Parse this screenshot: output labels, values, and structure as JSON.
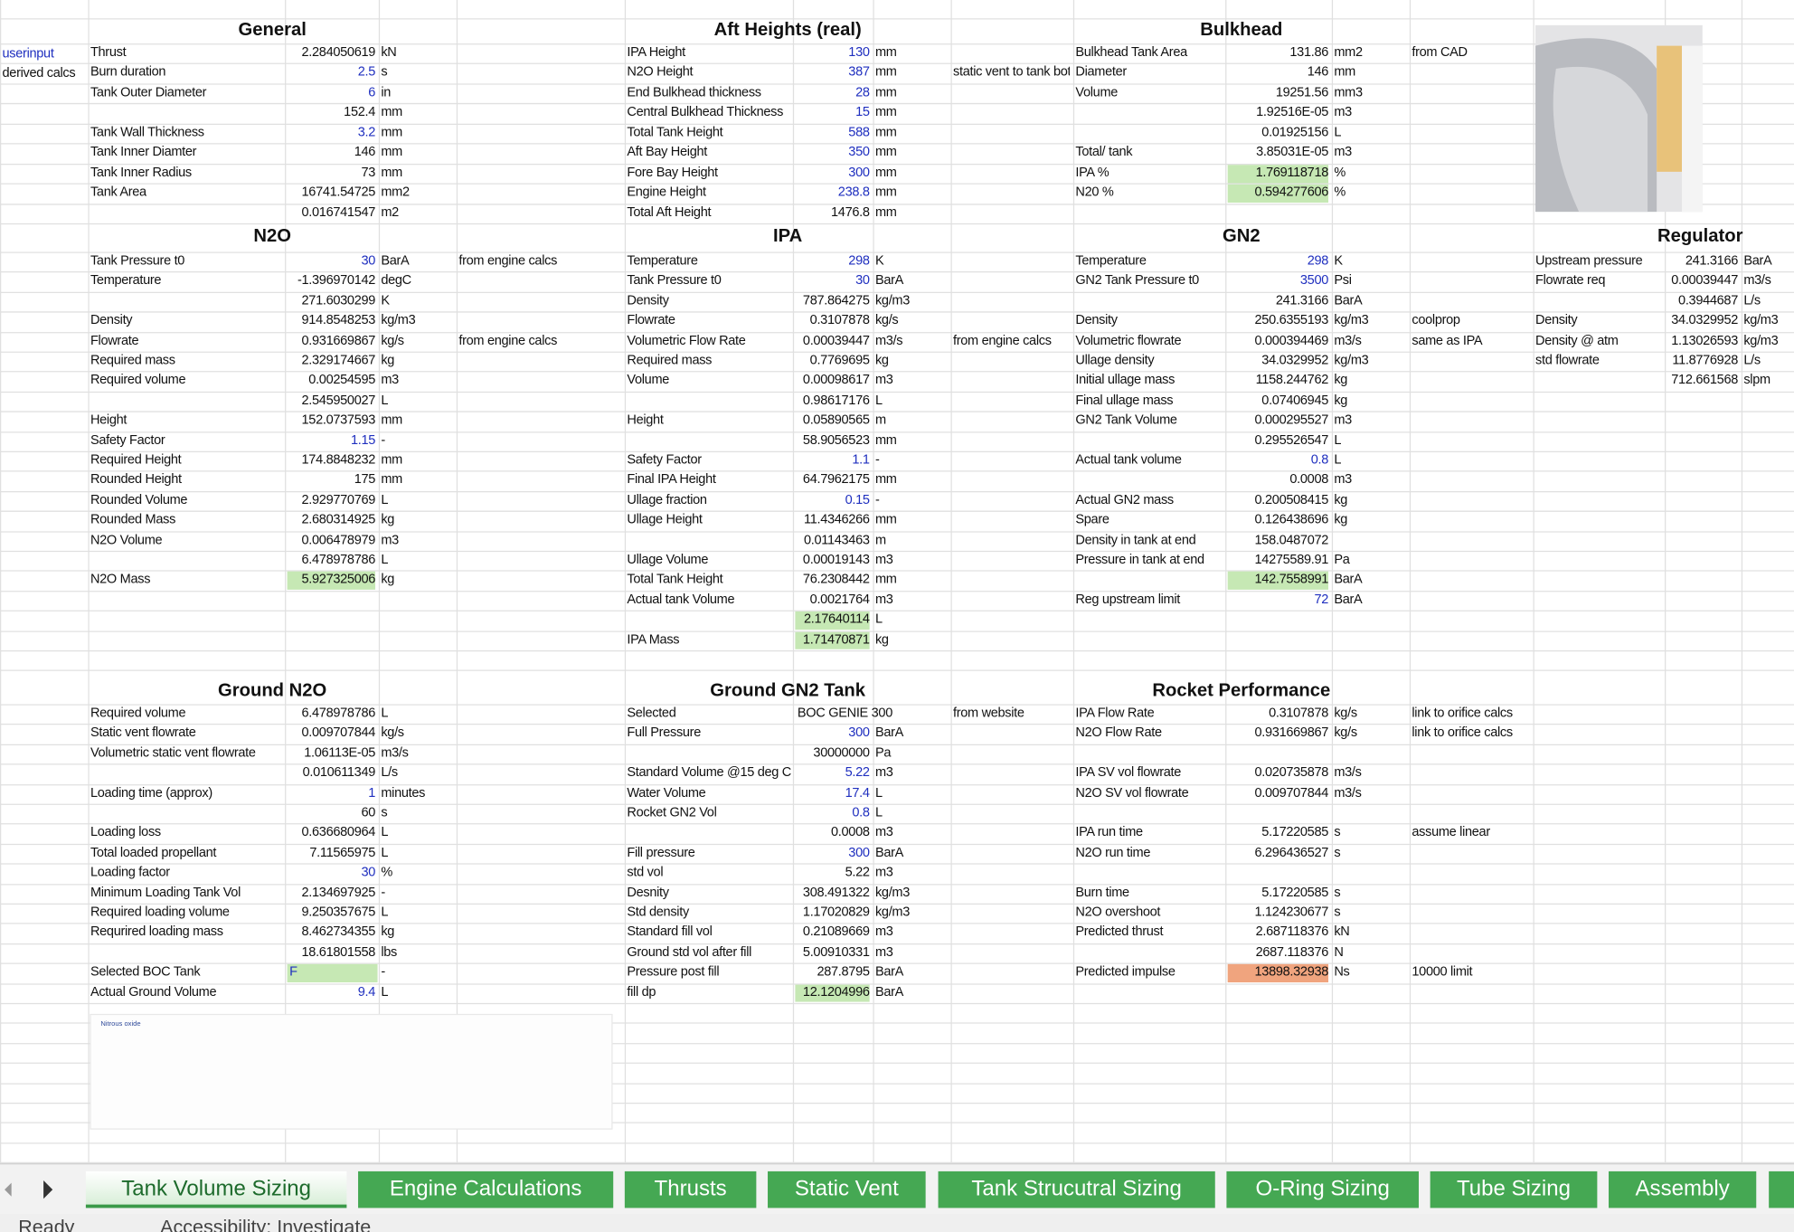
{
  "row_labels": [
    "userinput",
    "derived calcs"
  ],
  "sections": [
    {
      "title": "General",
      "rows": [
        [
          "Thrust",
          "2.284050619",
          "kN"
        ],
        [
          "Burn duration",
          "2.5",
          "s"
        ],
        [
          "Tank Outer Diameter",
          "6",
          "in"
        ],
        [
          null,
          "152.4",
          "mm"
        ],
        [
          "Tank Wall Thickness",
          "3.2",
          "mm"
        ],
        [
          "Tank Inner Diamter",
          "146",
          "mm"
        ],
        [
          "Tank Inner Radius",
          "73",
          "mm"
        ],
        [
          "Tank Area",
          "16741.54725",
          "mm2"
        ],
        [
          null,
          "0.016741547",
          "m2"
        ]
      ]
    },
    {
      "title": "Aft Heights (real)",
      "rows": [
        [
          "IPA Height",
          "130",
          "mm"
        ],
        [
          "N2O Height",
          "387",
          "mm",
          "static vent to tank bott"
        ],
        [
          "End Bulkhead thickness",
          "28",
          "mm"
        ],
        [
          "Central Bulkhead Thickness",
          "15",
          "mm"
        ],
        [
          "Total Tank Height",
          "588",
          "mm"
        ],
        [
          "Aft Bay Height",
          "350",
          "mm"
        ],
        [
          "Fore Bay Height",
          "300",
          "mm"
        ],
        [
          "Engine Height",
          "238.8",
          "mm"
        ],
        [
          "Total Aft Height",
          "1476.8",
          "mm"
        ]
      ]
    },
    {
      "title": "Bulkhead",
      "rows": [
        [
          "Bulkhead Tank Area",
          "131.86",
          "mm2",
          "from CAD"
        ],
        [
          "Diameter",
          "146",
          "mm"
        ],
        [
          "Volume",
          "19251.56",
          "mm3"
        ],
        [
          null,
          "1.92516E-05",
          "m3"
        ],
        [
          null,
          "0.01925156",
          "L"
        ],
        [
          "Total/ tank",
          "3.85031E-05",
          "m3"
        ],
        [
          "IPA %",
          "1.769118718",
          "%"
        ],
        [
          "N20 %",
          "0.594277606",
          "%"
        ]
      ]
    },
    {
      "title": "N2O",
      "rows": [
        [
          "Tank Pressure t0",
          "30",
          "BarA",
          "from engine calcs"
        ],
        [
          "Temperature",
          "-1.396970142",
          "degC"
        ],
        [
          null,
          "271.6030299",
          "K"
        ],
        [
          "Density",
          "914.8548253",
          "kg/m3"
        ],
        [
          "Flowrate",
          "0.931669867",
          "kg/s",
          "from engine calcs"
        ],
        [
          "Required mass",
          "2.329174667",
          "kg"
        ],
        [
          "Required volume",
          "0.00254595",
          "m3"
        ],
        [
          null,
          "2.545950027",
          "L"
        ],
        [
          "Height",
          "152.0737593",
          "mm"
        ],
        [
          "Safety Factor",
          "1.15",
          "-"
        ],
        [
          "Required Height",
          "174.8848232",
          "mm"
        ],
        [
          "Rounded Height",
          "175",
          "mm"
        ],
        [
          "Rounded Volume",
          "2.929770769",
          "L"
        ],
        [
          "Rounded Mass",
          "2.680314925",
          "kg"
        ],
        [
          "N2O Volume",
          "0.006478979",
          "m3"
        ],
        [
          null,
          "6.478978786",
          "L"
        ],
        [
          "N2O Mass",
          "5.927325006",
          "kg"
        ]
      ]
    },
    {
      "title": "IPA",
      "rows": [
        [
          "Temperature",
          "298",
          "K"
        ],
        [
          "Tank Pressure t0",
          "30",
          "BarA"
        ],
        [
          "Density",
          "787.864275",
          "kg/m3"
        ],
        [
          "Flowrate",
          "0.3107878",
          "kg/s"
        ],
        [
          "Volumetric Flow Rate",
          "0.00039447",
          "m3/s",
          "from engine calcs"
        ],
        [
          "Required mass",
          "0.7769695",
          "kg"
        ],
        [
          "Volume",
          "0.00098617",
          "m3"
        ],
        [
          null,
          "0.98617176",
          "L"
        ],
        [
          "Height",
          "0.05890565",
          "m"
        ],
        [
          null,
          "58.9056523",
          "mm"
        ],
        [
          "Safety Factor",
          "1.1",
          "-"
        ],
        [
          "Final IPA Height",
          "64.7962175",
          "mm"
        ],
        [
          "Ullage fraction",
          "0.15",
          "-"
        ],
        [
          "Ullage Height",
          "11.4346266",
          "mm"
        ],
        [
          null,
          "0.01143463",
          "m"
        ],
        [
          "Ullage Volume",
          "0.00019143",
          "m3"
        ],
        [
          "Total Tank Height",
          "76.2308442",
          "mm"
        ],
        [
          "Actual tank Volume",
          "0.0021764",
          "m3"
        ],
        [
          null,
          "2.17640114",
          "L"
        ],
        [
          "IPA Mass",
          "1.71470871",
          "kg"
        ]
      ]
    },
    {
      "title": "GN2",
      "rows": [
        [
          "Temperature",
          "298",
          "K"
        ],
        [
          "GN2 Tank Pressure t0",
          "3500",
          "Psi"
        ],
        [
          null,
          "241.3166",
          "BarA"
        ],
        [
          "Density",
          "250.6355193",
          "kg/m3",
          "coolprop"
        ],
        [
          "Volumetric flowrate",
          "0.000394469",
          "m3/s",
          "same as IPA"
        ],
        [
          "Ullage density",
          "34.0329952",
          "kg/m3"
        ],
        [
          "Initial ullage mass",
          "1158.244762",
          "kg"
        ],
        [
          "Final ullage mass",
          "0.07406945",
          "kg"
        ],
        [
          "GN2 Tank Volume",
          "0.000295527",
          "m3"
        ],
        [
          null,
          "0.295526547",
          "L"
        ],
        [
          "Actual tank volume",
          "0.8",
          "L"
        ],
        [
          null,
          "0.0008",
          "m3"
        ],
        [
          "Actual GN2 mass",
          "0.200508415",
          "kg"
        ],
        [
          "Spare",
          "0.126438696",
          "kg"
        ],
        [
          "Density in tank at end",
          "158.0487072"
        ],
        [
          "Pressure in tank at end",
          "14275589.91",
          "Pa"
        ],
        [
          null,
          "142.7558991",
          "BarA"
        ],
        [
          "Reg upstream limit",
          "72",
          "BarA"
        ]
      ]
    },
    {
      "title": "Regulator",
      "rows": [
        [
          "Upstream pressure",
          "241.3166",
          "BarA"
        ],
        [
          "Flowrate req",
          "0.00039447",
          "m3/s"
        ],
        [
          null,
          "0.3944687",
          "L/s"
        ],
        [
          "Density",
          "34.0329952",
          "kg/m3"
        ],
        [
          "Density @ atm",
          "1.13026593",
          "kg/m3"
        ],
        [
          "std flowrate",
          "11.8776928",
          "L/s"
        ],
        [
          null,
          "712.661568",
          "slpm"
        ]
      ]
    },
    {
      "title": "Ground N2O",
      "rows": [
        [
          "Required volume",
          "6.478978786",
          "L"
        ],
        [
          "Static vent flowrate",
          "0.009707844",
          "kg/s"
        ],
        [
          "Volumetric static vent flowrate",
          "1.06113E-05",
          "m3/s"
        ],
        [
          null,
          "0.010611349",
          "L/s"
        ],
        [
          "Loading time (approx)",
          "1",
          "minutes"
        ],
        [
          null,
          "60",
          "s"
        ],
        [
          "Loading loss",
          "0.636680964",
          "L"
        ],
        [
          "Total loaded propellant",
          "7.11565975",
          "L"
        ],
        [
          "Loading factor",
          "30",
          "%"
        ],
        [
          "Minimum Loading Tank Vol",
          "2.134697925",
          "-"
        ],
        [
          "Required loading volume",
          "9.250357675",
          "L"
        ],
        [
          "Requrired loading mass",
          "8.462734355",
          "kg"
        ],
        [
          null,
          "18.61801558",
          "lbs"
        ],
        [
          "Selected BOC Tank",
          "F",
          "-"
        ],
        [
          "Actual Ground Volume",
          "9.4",
          "L"
        ]
      ]
    },
    {
      "title": "Ground GN2 Tank",
      "rows": [
        [
          "Selected",
          "BOC GENIE 300",
          null,
          "from website"
        ],
        [
          "Full Pressure",
          "300",
          "BarA"
        ],
        [
          null,
          "30000000",
          "Pa"
        ],
        [
          "Standard Volume @15 deg C",
          "5.22",
          "m3"
        ],
        [
          "Water Volume",
          "17.4",
          "L"
        ],
        [
          "Rocket GN2 Vol",
          "0.8",
          "L"
        ],
        [
          null,
          "0.0008",
          "m3"
        ],
        [
          "Fill pressure",
          "300",
          "BarA"
        ],
        [
          "std vol",
          "5.22",
          "m3"
        ],
        [
          "Desnity",
          "308.491322",
          "kg/m3"
        ],
        [
          "Std density",
          "1.17020829",
          "kg/m3"
        ],
        [
          "Standard fill vol",
          "0.21089669",
          "m3"
        ],
        [
          "Ground std vol after fill",
          "5.00910331",
          "m3"
        ],
        [
          "Pressure post fill",
          "287.8795",
          "BarA"
        ],
        [
          "fill dp",
          "12.1204996",
          "BarA"
        ]
      ]
    },
    {
      "title": "Rocket Performance",
      "rows": [
        [
          "IPA Flow Rate",
          "0.3107878",
          "kg/s",
          "link to orifice calcs"
        ],
        [
          "N2O Flow Rate",
          "0.931669867",
          "kg/s",
          "link to orifice calcs"
        ],
        [],
        [
          "IPA SV vol flowrate",
          "0.020735878",
          "m3/s"
        ],
        [
          "N2O SV vol flowrate",
          "0.009707844",
          "m3/s"
        ],
        [],
        [
          "IPA run time",
          "5.17220585",
          "s",
          "assume linear"
        ],
        [
          "N2O run time",
          "6.296436527",
          "s"
        ],
        [],
        [
          "Burn time",
          "5.17220585",
          "s"
        ],
        [
          "N2O overshoot",
          "1.124230677",
          "s"
        ],
        [
          "Predicted thrust",
          "2.687118376",
          "kN"
        ],
        [
          null,
          "2687.118376",
          "N"
        ],
        [
          "Predicted impulse",
          "13898.32938",
          "Ns",
          "10000 limit"
        ]
      ]
    }
  ],
  "image_caption": "Nitrous oxide",
  "tabs": [
    "Tank Volume Sizing",
    "Engine Calculations",
    "Thrusts",
    "Static Vent",
    "Tank Strucutral Sizing",
    "O-Ring Sizing",
    "Tube Sizing",
    "Assembly"
  ],
  "status": {
    "ready": "Ready",
    "accessibility": "Accessibility: Investigate"
  }
}
